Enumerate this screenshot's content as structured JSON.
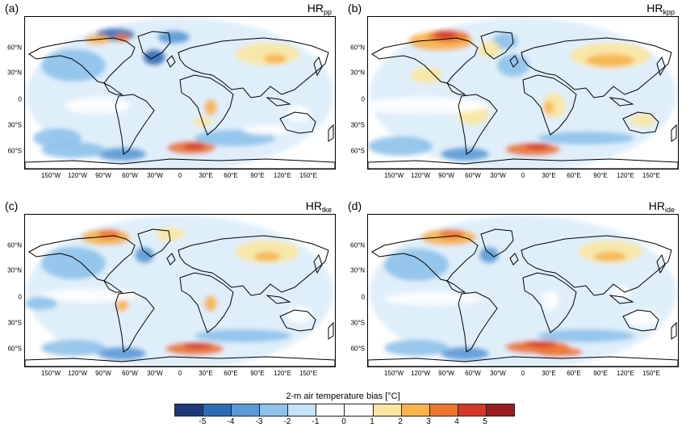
{
  "panels": [
    {
      "label": "(a)",
      "title_main": "HR",
      "title_sub": "pp"
    },
    {
      "label": "(b)",
      "title_main": "HR",
      "title_sub": "kpp"
    },
    {
      "label": "(c)",
      "title_main": "HR",
      "title_sub": "tke"
    },
    {
      "label": "(d)",
      "title_main": "HR",
      "title_sub": "ide"
    }
  ],
  "lat_labels": [
    "60°N",
    "30°N",
    "0",
    "30°S",
    "60°S"
  ],
  "lon_labels": [
    "150°W",
    "120°W",
    "90°W",
    "60°W",
    "30°W",
    "0",
    "30°E",
    "60°E",
    "90°E",
    "120°E",
    "150°E"
  ],
  "colorbar": {
    "title": "2-m air temperature bias [°C]",
    "ticks": [
      "-5",
      "-4",
      "-3",
      "-2",
      "-1",
      "0",
      "1",
      "2",
      "3",
      "4",
      "5"
    ],
    "colors": [
      "#1f3a7a",
      "#2f6bb5",
      "#5a9ad6",
      "#8ec2ea",
      "#c5e2f6",
      "#ffffff",
      "#ffffff",
      "#fbe7a0",
      "#f7b44c",
      "#ec7733",
      "#d3382a",
      "#9a1c20"
    ]
  }
}
